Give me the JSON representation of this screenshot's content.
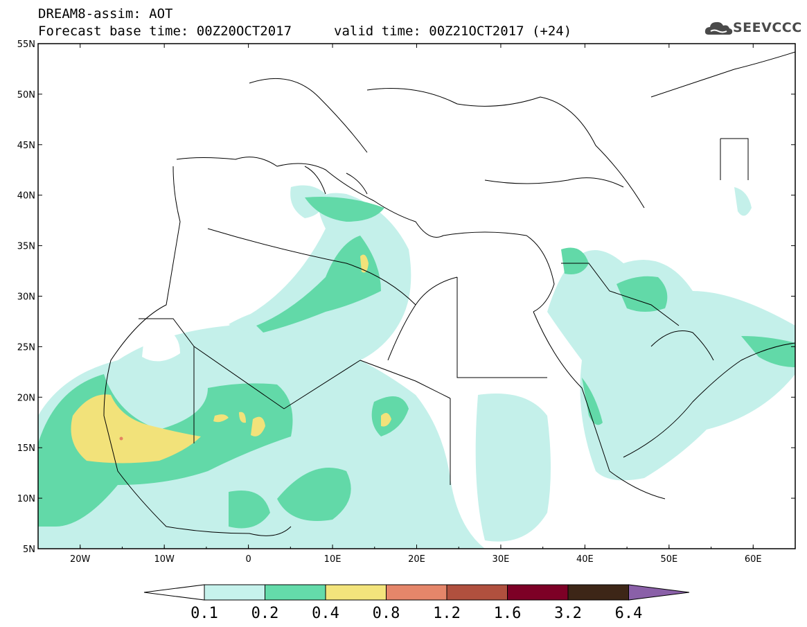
{
  "header": {
    "line1": "DREAM8-assim: AOT",
    "line2": "Forecast base time: 00Z20OCT2017",
    "line3": "valid time: 00Z21OCT2017 (+24)"
  },
  "logo": {
    "text": "SEEVCCC",
    "icon": "cloud-icon"
  },
  "map": {
    "lon_range": [
      -25,
      65
    ],
    "lat_range": [
      5,
      55
    ],
    "lat_labels": [
      "55N",
      "50N",
      "45N",
      "40N",
      "35N",
      "30N",
      "25N",
      "20N",
      "15N",
      "10N",
      "5N"
    ],
    "lon_labels": [
      "20W",
      "10W",
      "0",
      "10E",
      "20E",
      "30E",
      "40E",
      "50E",
      "60E"
    ],
    "fill_colors": {
      "level_0_1": "#c4f0ea",
      "level_0_2": "#62d9a8",
      "level_0_4": "#f2e27a",
      "level_0_8": "#e48461"
    }
  },
  "colorbar": {
    "labels": [
      "0.1",
      "0.2",
      "0.4",
      "0.8",
      "1.2",
      "1.6",
      "3.2",
      "6.4"
    ],
    "colors": [
      "#c6f2ec",
      "#64dbaa",
      "#f3e47c",
      "#e5866a",
      "#b0503e",
      "#7d0026",
      "#3d2617",
      "#8a60a8"
    ]
  }
}
